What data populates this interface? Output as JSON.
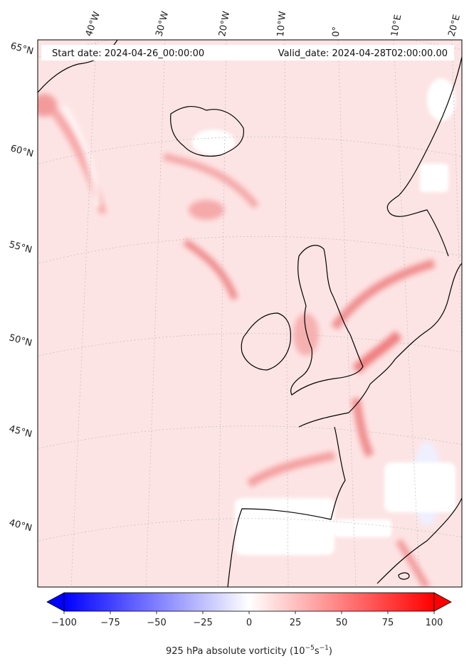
{
  "header": {
    "start_date": "Start date: 2024-04-26_00:00:00",
    "valid_date": "Valid_date: 2024-04-28T02:00:00.00"
  },
  "lon_labels": [
    "40°W",
    "30°W",
    "20°W",
    "10°W",
    "0°",
    "10°E",
    "20°E"
  ],
  "lat_labels": [
    "65°N",
    "60°N",
    "55°N",
    "50°N",
    "45°N",
    "40°N"
  ],
  "colorbar": {
    "ticks": [
      "−100",
      "−75",
      "−50",
      "−25",
      "0",
      "25",
      "50",
      "75",
      "100"
    ],
    "label_main": "925 hPa absolute vorticity (10",
    "label_exp1": "−5",
    "label_mid": "s",
    "label_exp2": "−1",
    "label_end": ")",
    "vmin": -100,
    "vmax": 100,
    "low_color": "#0000ff",
    "mid_color": "#ffffff",
    "high_color": "#ff0000"
  },
  "colors": {
    "background_field": "#fde3e3",
    "land_white": "#ffffff",
    "coast": "#000000",
    "grid": "#bbbbbb"
  }
}
